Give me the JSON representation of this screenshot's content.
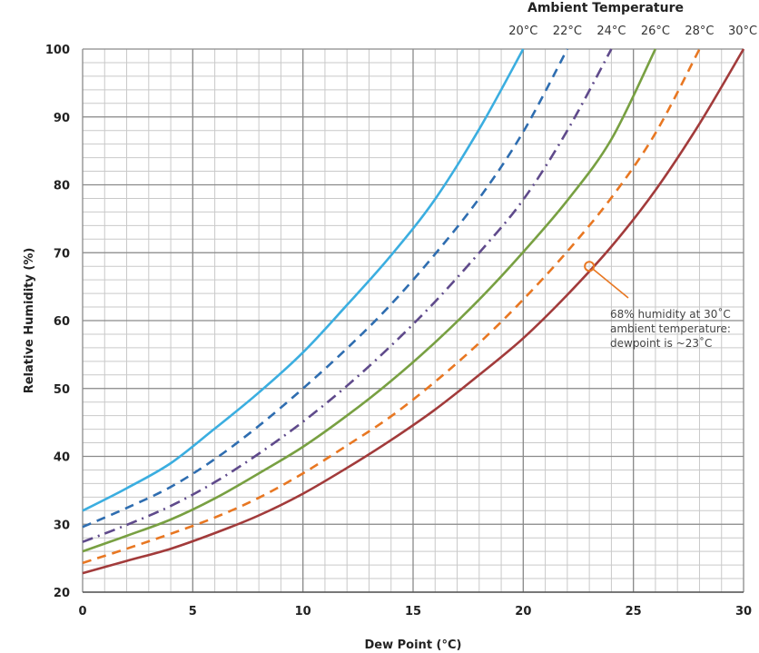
{
  "chart_data": {
    "type": "line",
    "title": "",
    "xlabel": "Dew Point (°C)",
    "ylabel": "Relative Humidity (%)",
    "xlim": [
      0,
      30
    ],
    "ylim": [
      20,
      100
    ],
    "x_ticks": [
      0,
      5,
      10,
      15,
      20,
      25,
      30
    ],
    "y_ticks": [
      20,
      30,
      40,
      50,
      60,
      70,
      80,
      90,
      100
    ],
    "grid": true,
    "legend": {
      "title": "Ambient Temperature",
      "placement": "top"
    },
    "series": [
      {
        "name": "20°C",
        "color": "#3baee0",
        "dash": "solid",
        "points": [
          [
            0,
            32.0
          ],
          [
            2,
            35.3
          ],
          [
            4,
            39.0
          ],
          [
            6,
            44.1
          ],
          [
            8,
            49.4
          ],
          [
            10,
            55.3
          ],
          [
            12,
            62.3
          ],
          [
            14,
            69.6
          ],
          [
            16,
            77.9
          ],
          [
            18,
            88.2
          ],
          [
            20,
            100
          ]
        ]
      },
      {
        "name": "22°C",
        "color": "#2e6db0",
        "dash": "dashed",
        "points": [
          [
            0,
            29.6
          ],
          [
            2,
            32.4
          ],
          [
            4,
            35.5
          ],
          [
            6,
            39.6
          ],
          [
            8,
            44.5
          ],
          [
            10,
            50.0
          ],
          [
            12,
            55.9
          ],
          [
            14,
            62.4
          ],
          [
            16,
            69.8
          ],
          [
            18,
            78.0
          ],
          [
            20,
            87.8
          ],
          [
            22,
            100
          ]
        ]
      },
      {
        "name": "24°C",
        "color": "#5f4a8b",
        "dash": "dashdot",
        "points": [
          [
            0,
            27.4
          ],
          [
            2,
            29.9
          ],
          [
            4,
            32.7
          ],
          [
            6,
            36.2
          ],
          [
            8,
            40.4
          ],
          [
            10,
            45.1
          ],
          [
            12,
            50.4
          ],
          [
            14,
            56.3
          ],
          [
            16,
            62.8
          ],
          [
            18,
            70.0
          ],
          [
            20,
            77.8
          ],
          [
            22,
            88.0
          ],
          [
            24,
            100
          ]
        ]
      },
      {
        "name": "26°C",
        "color": "#78a042",
        "dash": "solid",
        "points": [
          [
            0,
            26.0
          ],
          [
            2,
            28.3
          ],
          [
            4,
            30.7
          ],
          [
            6,
            33.8
          ],
          [
            8,
            37.5
          ],
          [
            10,
            41.4
          ],
          [
            12,
            46.0
          ],
          [
            14,
            51.1
          ],
          [
            16,
            56.8
          ],
          [
            18,
            63.1
          ],
          [
            20,
            70.1
          ],
          [
            22,
            77.7
          ],
          [
            24,
            86.7
          ],
          [
            26,
            100
          ]
        ]
      },
      {
        "name": "28°C",
        "color": "#e87722",
        "dash": "dashed",
        "points": [
          [
            0,
            24.3
          ],
          [
            2,
            26.4
          ],
          [
            4,
            28.6
          ],
          [
            6,
            31.0
          ],
          [
            8,
            33.9
          ],
          [
            10,
            37.5
          ],
          [
            12,
            41.6
          ],
          [
            14,
            45.9
          ],
          [
            16,
            51.0
          ],
          [
            18,
            56.7
          ],
          [
            20,
            63.1
          ],
          [
            22,
            70.2
          ],
          [
            24,
            78.1
          ],
          [
            26,
            87.6
          ],
          [
            28,
            100
          ]
        ]
      },
      {
        "name": "30°C",
        "color": "#a23b3b",
        "dash": "solid",
        "points": [
          [
            0,
            22.8
          ],
          [
            2,
            24.6
          ],
          [
            4,
            26.4
          ],
          [
            6,
            28.7
          ],
          [
            8,
            31.3
          ],
          [
            10,
            34.5
          ],
          [
            12,
            38.3
          ],
          [
            14,
            42.4
          ],
          [
            16,
            46.9
          ],
          [
            18,
            52.0
          ],
          [
            20,
            57.4
          ],
          [
            22,
            63.8
          ],
          [
            24,
            70.9
          ],
          [
            26,
            79.2
          ],
          [
            28,
            89.0
          ],
          [
            30,
            100
          ]
        ]
      }
    ],
    "annotation": {
      "lines": [
        "68% humidity at 30˚C",
        "ambient temperature:",
        "dewpoint is ~23˚C"
      ],
      "point": [
        23,
        68
      ],
      "color": "#e87722"
    }
  }
}
